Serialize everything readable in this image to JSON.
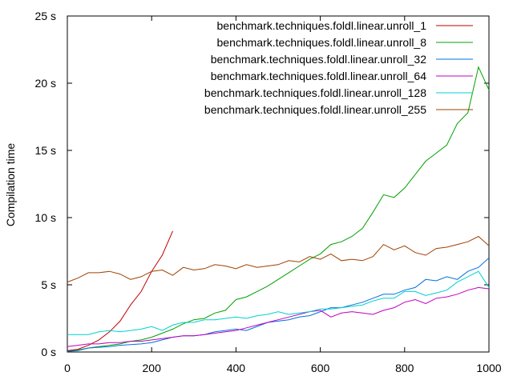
{
  "chart_data": {
    "type": "line",
    "ylabel": "Compilation time",
    "xlabel": "",
    "xlim": [
      0,
      1000
    ],
    "ylim": [
      0,
      25
    ],
    "x_ticks": [
      {
        "value": 0,
        "label": "0"
      },
      {
        "value": 200,
        "label": "200"
      },
      {
        "value": 400,
        "label": "400"
      },
      {
        "value": 600,
        "label": "600"
      },
      {
        "value": 800,
        "label": "800"
      },
      {
        "value": 1000,
        "label": "1000"
      }
    ],
    "y_ticks": [
      {
        "value": 0,
        "label": "0 s"
      },
      {
        "value": 5,
        "label": "5 s"
      },
      {
        "value": 10,
        "label": "10 s"
      },
      {
        "value": 15,
        "label": "15 s"
      },
      {
        "value": 20,
        "label": "20 s"
      },
      {
        "value": 25,
        "label": "25 s"
      }
    ],
    "grid": false,
    "legend_position": "top-right",
    "series": [
      {
        "name": "benchmark.techniques.foldl.linear.unroll_1",
        "color": "#c00000",
        "points": [
          [
            0,
            0.1
          ],
          [
            25,
            0.2
          ],
          [
            50,
            0.5
          ],
          [
            75,
            0.9
          ],
          [
            100,
            1.5
          ],
          [
            125,
            2.3
          ],
          [
            150,
            3.5
          ],
          [
            175,
            4.5
          ],
          [
            200,
            6.0
          ],
          [
            225,
            7.2
          ],
          [
            250,
            9.0
          ]
        ]
      },
      {
        "name": "benchmark.techniques.foldl.linear.unroll_8",
        "color": "#00a000",
        "points": [
          [
            0,
            0.05
          ],
          [
            25,
            0.15
          ],
          [
            50,
            0.3
          ],
          [
            75,
            0.4
          ],
          [
            100,
            0.5
          ],
          [
            125,
            0.6
          ],
          [
            150,
            0.8
          ],
          [
            175,
            0.9
          ],
          [
            200,
            1.1
          ],
          [
            225,
            1.4
          ],
          [
            250,
            1.7
          ],
          [
            275,
            2.1
          ],
          [
            300,
            2.4
          ],
          [
            325,
            2.5
          ],
          [
            350,
            2.9
          ],
          [
            375,
            3.1
          ],
          [
            400,
            3.9
          ],
          [
            425,
            4.1
          ],
          [
            450,
            4.5
          ],
          [
            475,
            4.9
          ],
          [
            500,
            5.4
          ],
          [
            525,
            5.9
          ],
          [
            550,
            6.4
          ],
          [
            575,
            6.9
          ],
          [
            600,
            7.3
          ],
          [
            625,
            8.0
          ],
          [
            650,
            8.2
          ],
          [
            675,
            8.6
          ],
          [
            700,
            9.2
          ],
          [
            725,
            10.4
          ],
          [
            750,
            11.7
          ],
          [
            775,
            11.5
          ],
          [
            800,
            12.2
          ],
          [
            825,
            13.2
          ],
          [
            850,
            14.2
          ],
          [
            875,
            14.8
          ],
          [
            900,
            15.4
          ],
          [
            925,
            17.0
          ],
          [
            950,
            17.8
          ],
          [
            975,
            21.2
          ],
          [
            1000,
            19.5
          ]
        ]
      },
      {
        "name": "benchmark.techniques.foldl.linear.unroll_32",
        "color": "#0070e0",
        "points": [
          [
            0,
            0.05
          ],
          [
            25,
            0.1
          ],
          [
            50,
            0.3
          ],
          [
            75,
            0.35
          ],
          [
            100,
            0.4
          ],
          [
            125,
            0.5
          ],
          [
            150,
            0.55
          ],
          [
            175,
            0.6
          ],
          [
            200,
            0.7
          ],
          [
            225,
            0.9
          ],
          [
            250,
            1.1
          ],
          [
            275,
            1.2
          ],
          [
            300,
            1.2
          ],
          [
            325,
            1.3
          ],
          [
            350,
            1.5
          ],
          [
            375,
            1.6
          ],
          [
            400,
            1.7
          ],
          [
            425,
            1.6
          ],
          [
            450,
            1.9
          ],
          [
            475,
            2.2
          ],
          [
            500,
            2.3
          ],
          [
            525,
            2.4
          ],
          [
            550,
            2.6
          ],
          [
            575,
            2.7
          ],
          [
            600,
            3.0
          ],
          [
            625,
            3.3
          ],
          [
            650,
            3.3
          ],
          [
            675,
            3.5
          ],
          [
            700,
            3.7
          ],
          [
            725,
            4.0
          ],
          [
            750,
            4.3
          ],
          [
            775,
            4.3
          ],
          [
            800,
            4.6
          ],
          [
            825,
            4.8
          ],
          [
            850,
            5.4
          ],
          [
            875,
            5.3
          ],
          [
            900,
            5.6
          ],
          [
            925,
            5.4
          ],
          [
            950,
            6.0
          ],
          [
            975,
            6.3
          ],
          [
            1000,
            7.0
          ]
        ]
      },
      {
        "name": "benchmark.techniques.foldl.linear.unroll_64",
        "color": "#c000c0",
        "points": [
          [
            0,
            0.4
          ],
          [
            25,
            0.5
          ],
          [
            50,
            0.6
          ],
          [
            75,
            0.6
          ],
          [
            100,
            0.7
          ],
          [
            125,
            0.7
          ],
          [
            150,
            0.8
          ],
          [
            175,
            0.8
          ],
          [
            200,
            0.9
          ],
          [
            225,
            1.0
          ],
          [
            250,
            1.1
          ],
          [
            275,
            1.2
          ],
          [
            300,
            1.2
          ],
          [
            325,
            1.3
          ],
          [
            350,
            1.4
          ],
          [
            375,
            1.5
          ],
          [
            400,
            1.6
          ],
          [
            425,
            1.8
          ],
          [
            450,
            2.0
          ],
          [
            475,
            2.2
          ],
          [
            500,
            2.4
          ],
          [
            525,
            2.6
          ],
          [
            550,
            2.8
          ],
          [
            575,
            3.0
          ],
          [
            600,
            3.1
          ],
          [
            625,
            2.6
          ],
          [
            650,
            2.9
          ],
          [
            675,
            3.0
          ],
          [
            700,
            2.9
          ],
          [
            725,
            2.8
          ],
          [
            750,
            3.1
          ],
          [
            775,
            3.3
          ],
          [
            800,
            3.7
          ],
          [
            825,
            3.9
          ],
          [
            850,
            3.6
          ],
          [
            875,
            4.0
          ],
          [
            900,
            4.1
          ],
          [
            925,
            4.3
          ],
          [
            950,
            4.6
          ],
          [
            975,
            4.8
          ],
          [
            1000,
            4.7
          ]
        ]
      },
      {
        "name": "benchmark.techniques.foldl.linear.unroll_128",
        "color": "#00d0d0",
        "points": [
          [
            0,
            1.3
          ],
          [
            25,
            1.3
          ],
          [
            50,
            1.3
          ],
          [
            75,
            1.5
          ],
          [
            100,
            1.6
          ],
          [
            125,
            1.5
          ],
          [
            150,
            1.6
          ],
          [
            175,
            1.7
          ],
          [
            200,
            1.9
          ],
          [
            225,
            1.6
          ],
          [
            250,
            2.0
          ],
          [
            275,
            2.2
          ],
          [
            300,
            2.2
          ],
          [
            325,
            2.4
          ],
          [
            350,
            2.4
          ],
          [
            375,
            2.5
          ],
          [
            400,
            2.6
          ],
          [
            425,
            2.5
          ],
          [
            450,
            2.7
          ],
          [
            475,
            2.8
          ],
          [
            500,
            3.0
          ],
          [
            525,
            2.8
          ],
          [
            550,
            2.9
          ],
          [
            575,
            3.0
          ],
          [
            600,
            3.2
          ],
          [
            625,
            3.2
          ],
          [
            650,
            3.3
          ],
          [
            675,
            3.4
          ],
          [
            700,
            3.5
          ],
          [
            725,
            3.8
          ],
          [
            750,
            4.0
          ],
          [
            775,
            4.0
          ],
          [
            800,
            4.5
          ],
          [
            825,
            4.5
          ],
          [
            850,
            4.2
          ],
          [
            875,
            4.4
          ],
          [
            900,
            4.6
          ],
          [
            925,
            5.2
          ],
          [
            950,
            5.6
          ],
          [
            975,
            6.0
          ],
          [
            1000,
            4.8
          ]
        ]
      },
      {
        "name": "benchmark.techniques.foldl.linear.unroll_255",
        "color": "#a04000",
        "points": [
          [
            0,
            5.2
          ],
          [
            25,
            5.5
          ],
          [
            50,
            5.9
          ],
          [
            75,
            5.9
          ],
          [
            100,
            6.0
          ],
          [
            125,
            5.8
          ],
          [
            150,
            5.4
          ],
          [
            175,
            5.6
          ],
          [
            200,
            6.0
          ],
          [
            225,
            6.1
          ],
          [
            250,
            5.7
          ],
          [
            275,
            6.3
          ],
          [
            300,
            6.1
          ],
          [
            325,
            6.2
          ],
          [
            350,
            6.5
          ],
          [
            375,
            6.4
          ],
          [
            400,
            6.2
          ],
          [
            425,
            6.5
          ],
          [
            450,
            6.3
          ],
          [
            475,
            6.4
          ],
          [
            500,
            6.5
          ],
          [
            525,
            6.8
          ],
          [
            550,
            6.7
          ],
          [
            575,
            7.1
          ],
          [
            600,
            6.9
          ],
          [
            625,
            7.3
          ],
          [
            650,
            6.8
          ],
          [
            675,
            6.9
          ],
          [
            700,
            6.8
          ],
          [
            725,
            7.1
          ],
          [
            750,
            8.0
          ],
          [
            775,
            7.6
          ],
          [
            800,
            7.9
          ],
          [
            825,
            7.4
          ],
          [
            850,
            7.2
          ],
          [
            875,
            7.7
          ],
          [
            900,
            7.8
          ],
          [
            925,
            8.0
          ],
          [
            950,
            8.2
          ],
          [
            975,
            8.6
          ],
          [
            1000,
            7.9
          ]
        ]
      }
    ]
  }
}
